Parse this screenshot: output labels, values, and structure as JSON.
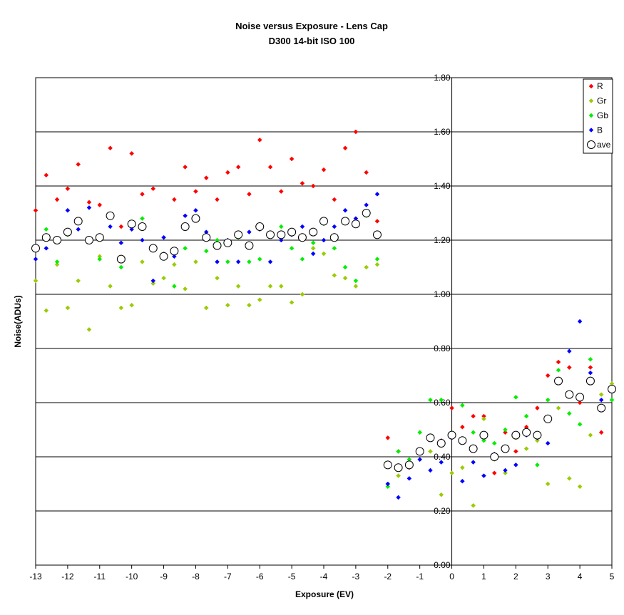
{
  "chart_data": {
    "type": "scatter",
    "title": "Noise versus Exposure - Lens Cap",
    "subtitle": "D300 14-bit ISO 100",
    "xlabel": "Exposure (EV)",
    "ylabel": "Noise(ADUs)",
    "xlim": [
      -13,
      5
    ],
    "ylim": [
      0.0,
      1.8
    ],
    "xticks": [
      "-13",
      "-12",
      "-11",
      "-10",
      "-9",
      "-8",
      "-7",
      "-6",
      "-5",
      "-4",
      "-3",
      "-2",
      "-1",
      "0",
      "1",
      "2",
      "3",
      "4",
      "5"
    ],
    "yticks": [
      "0.00",
      "0.20",
      "0.40",
      "0.60",
      "0.80",
      "1.00",
      "1.20",
      "1.40",
      "1.60",
      "1.80"
    ],
    "grid": "horizontal",
    "legend_position": "top-right",
    "series": [
      {
        "name": "R",
        "color": "#ff0000",
        "marker": "diamond",
        "x": [
          -13,
          -12.67,
          -12.33,
          -12,
          -11.67,
          -11.33,
          -11,
          -10.67,
          -10.33,
          -10,
          -9.67,
          -9.33,
          -9,
          -8.67,
          -8.33,
          -8,
          -7.67,
          -7.33,
          -7,
          -6.67,
          -6.33,
          -6,
          -5.67,
          -5.33,
          -5,
          -4.67,
          -4.33,
          -4,
          -3.67,
          -3.33,
          -3,
          -2.67,
          -2.33,
          -2,
          -1.67,
          -1.33,
          -1,
          -0.67,
          -0.33,
          0,
          0.33,
          0.67,
          1,
          1.33,
          1.67,
          2,
          2.33,
          2.67,
          3,
          3.33,
          3.67,
          4,
          4.33,
          4.67,
          5
        ],
        "y": [
          1.31,
          1.44,
          1.35,
          1.39,
          1.48,
          1.34,
          1.33,
          1.54,
          1.25,
          1.52,
          1.37,
          1.39,
          1.15,
          1.35,
          1.47,
          1.38,
          1.43,
          1.35,
          1.45,
          1.47,
          1.37,
          1.57,
          1.47,
          1.38,
          1.5,
          1.41,
          1.4,
          1.46,
          1.35,
          1.54,
          1.6,
          1.45,
          1.27,
          0.47,
          0.42,
          0.36,
          0.42,
          0.47,
          0.46,
          0.58,
          0.51,
          0.55,
          0.55,
          0.34,
          0.49,
          0.42,
          0.51,
          0.58,
          0.7,
          0.75,
          0.73,
          0.6,
          0.73,
          0.49,
          0.66
        ]
      },
      {
        "name": "Gr",
        "color": "#99cc00",
        "marker": "diamond",
        "x": [
          -13,
          -12.67,
          -12.33,
          -12,
          -11.67,
          -11.33,
          -11,
          -10.67,
          -10.33,
          -10,
          -9.67,
          -9.33,
          -9,
          -8.67,
          -8.33,
          -8,
          -7.67,
          -7.33,
          -7,
          -6.67,
          -6.33,
          -6,
          -5.67,
          -5.33,
          -5,
          -4.67,
          -4.33,
          -4,
          -3.67,
          -3.33,
          -3,
          -2.67,
          -2.33,
          -2,
          -1.67,
          -1.33,
          -1,
          -0.67,
          -0.33,
          0,
          0.33,
          0.67,
          1,
          1.33,
          1.67,
          2,
          2.33,
          2.67,
          3,
          3.33,
          3.67,
          4,
          4.33,
          4.67,
          5
        ],
        "y": [
          1.05,
          0.94,
          1.11,
          0.95,
          1.05,
          0.87,
          1.14,
          1.03,
          0.95,
          0.96,
          1.12,
          1.04,
          1.06,
          1.11,
          1.02,
          1.12,
          0.95,
          1.06,
          0.96,
          1.03,
          0.96,
          0.98,
          1.03,
          1.03,
          0.97,
          1.0,
          1.17,
          1.15,
          1.07,
          1.06,
          1.03,
          1.1,
          1.11,
          0.37,
          0.33,
          0.38,
          0.39,
          0.42,
          0.26,
          0.34,
          0.36,
          0.22,
          0.54,
          0.39,
          0.34,
          0.47,
          0.43,
          0.46,
          0.3,
          0.58,
          0.32,
          0.29,
          0.48,
          0.63,
          0.67
        ]
      },
      {
        "name": "Gb",
        "color": "#00ee00",
        "marker": "diamond",
        "x": [
          -13,
          -12.67,
          -12.33,
          -12,
          -11.67,
          -11.33,
          -11,
          -10.67,
          -10.33,
          -10,
          -9.67,
          -9.33,
          -9,
          -8.67,
          -8.33,
          -8,
          -7.67,
          -7.33,
          -7,
          -6.67,
          -6.33,
          -6,
          -5.67,
          -5.33,
          -5,
          -4.67,
          -4.33,
          -4,
          -3.67,
          -3.33,
          -3,
          -2.67,
          -2.33,
          -2,
          -1.67,
          -1.33,
          -1,
          -0.67,
          -0.33,
          0,
          0.33,
          0.67,
          1,
          1.33,
          1.67,
          2,
          2.33,
          2.67,
          3,
          3.33,
          3.67,
          4,
          4.33,
          4.67,
          5
        ],
        "y": [
          1.17,
          1.24,
          1.12,
          1.22,
          1.27,
          1.2,
          1.13,
          1.29,
          1.1,
          1.25,
          1.28,
          1.17,
          1.15,
          1.03,
          1.17,
          1.28,
          1.16,
          1.2,
          1.12,
          1.21,
          1.12,
          1.13,
          1.22,
          1.25,
          1.17,
          1.13,
          1.19,
          1.26,
          1.17,
          1.1,
          1.05,
          1.29,
          1.13,
          0.29,
          0.42,
          0.39,
          0.49,
          0.61,
          0.61,
          0.48,
          0.59,
          0.49,
          0.46,
          0.45,
          0.5,
          0.62,
          0.55,
          0.37,
          0.61,
          0.72,
          0.56,
          0.52,
          0.76,
          0.58,
          0.61
        ]
      },
      {
        "name": "B",
        "color": "#0000ff",
        "marker": "diamond",
        "x": [
          -13,
          -12.67,
          -12.33,
          -12,
          -11.67,
          -11.33,
          -11,
          -10.67,
          -10.33,
          -10,
          -9.67,
          -9.33,
          -9,
          -8.67,
          -8.33,
          -8,
          -7.67,
          -7.33,
          -7,
          -6.67,
          -6.33,
          -6,
          -5.67,
          -5.33,
          -5,
          -4.67,
          -4.33,
          -4,
          -3.67,
          -3.33,
          -3,
          -2.67,
          -2.33,
          -2,
          -1.67,
          -1.33,
          -1,
          -0.67,
          -0.33,
          0,
          0.33,
          0.67,
          1,
          1.33,
          1.67,
          2,
          2.33,
          2.67,
          3,
          3.33,
          3.67,
          4,
          4.33,
          4.67,
          5
        ],
        "y": [
          1.13,
          1.17,
          1.2,
          1.31,
          1.24,
          1.32,
          1.21,
          1.25,
          1.19,
          1.24,
          1.2,
          1.05,
          1.21,
          1.14,
          1.29,
          1.31,
          1.23,
          1.12,
          1.2,
          1.12,
          1.23,
          1.24,
          1.12,
          1.2,
          1.22,
          1.25,
          1.15,
          1.2,
          1.25,
          1.31,
          1.28,
          1.33,
          1.37,
          0.3,
          0.25,
          0.32,
          0.39,
          0.35,
          0.38,
          0.47,
          0.31,
          0.38,
          0.33,
          0.41,
          0.35,
          0.37,
          0.48,
          0.47,
          0.45,
          0.68,
          0.79,
          0.9,
          0.71,
          0.61,
          0.65
        ]
      },
      {
        "name": "ave",
        "color": "#000000",
        "marker": "circle",
        "x": [
          -13,
          -12.67,
          -12.33,
          -12,
          -11.67,
          -11.33,
          -11,
          -10.67,
          -10.33,
          -10,
          -9.67,
          -9.33,
          -9,
          -8.67,
          -8.33,
          -8,
          -7.67,
          -7.33,
          -7,
          -6.67,
          -6.33,
          -6,
          -5.67,
          -5.33,
          -5,
          -4.67,
          -4.33,
          -4,
          -3.67,
          -3.33,
          -3,
          -2.67,
          -2.33,
          -2,
          -1.67,
          -1.33,
          -1,
          -0.67,
          -0.33,
          0,
          0.33,
          0.67,
          1,
          1.33,
          1.67,
          2,
          2.33,
          2.67,
          3,
          3.33,
          3.67,
          4,
          4.33,
          4.67,
          5
        ],
        "y": [
          1.17,
          1.21,
          1.2,
          1.23,
          1.27,
          1.2,
          1.21,
          1.29,
          1.13,
          1.26,
          1.25,
          1.17,
          1.14,
          1.16,
          1.25,
          1.28,
          1.21,
          1.18,
          1.19,
          1.22,
          1.18,
          1.25,
          1.22,
          1.22,
          1.23,
          1.21,
          1.23,
          1.27,
          1.21,
          1.27,
          1.26,
          1.3,
          1.22,
          0.37,
          0.36,
          0.37,
          0.42,
          0.47,
          0.45,
          0.48,
          0.46,
          0.43,
          0.48,
          0.4,
          0.43,
          0.48,
          0.49,
          0.48,
          0.54,
          0.68,
          0.63,
          0.62,
          0.68,
          0.58,
          0.65
        ]
      }
    ]
  }
}
